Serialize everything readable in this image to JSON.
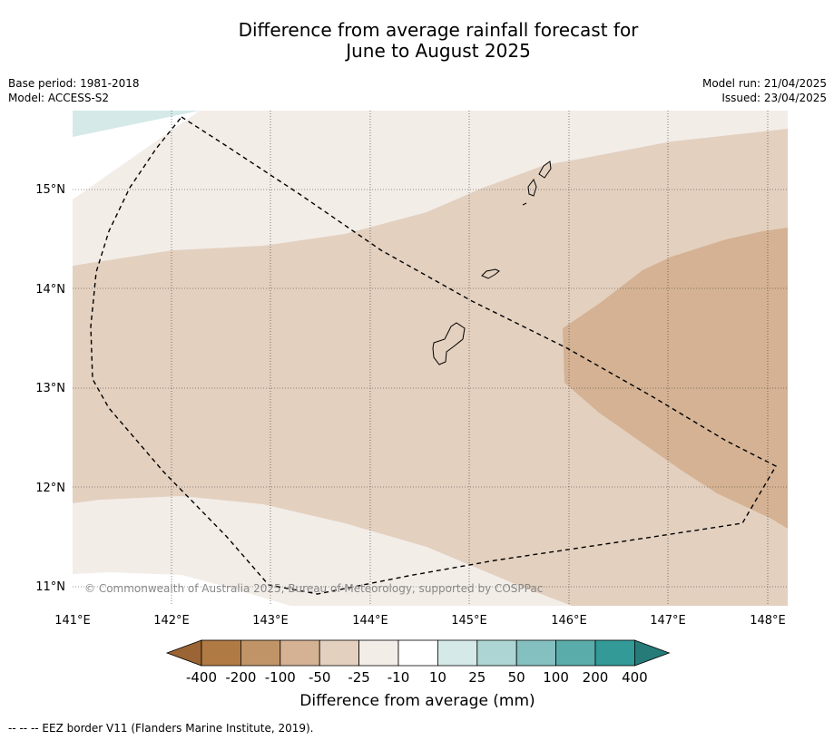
{
  "title_line1": "Difference from average rainfall forecast for",
  "title_line2": "June to August 2025",
  "info": {
    "base_period": "Base period: 1981-2018",
    "model": "Model: ACCESS-S2",
    "model_run": "Model run: 21/04/2025",
    "issued": "Issued: 23/04/2025"
  },
  "map": {
    "lon_ticks": [
      "141°E",
      "142°E",
      "143°E",
      "144°E",
      "145°E",
      "146°E",
      "147°E",
      "148°E"
    ],
    "lat_ticks": [
      "15°N",
      "14°N",
      "13°N",
      "12°N",
      "11°N"
    ],
    "copyright": "© Commonwealth of Australia 2025, Bureau of Meteorology, supported by COSPPac"
  },
  "legend": {
    "labels": [
      "-400",
      "-200",
      "-100",
      "-50",
      "-25",
      "-10",
      "10",
      "25",
      "50",
      "100",
      "200",
      "400"
    ],
    "colors": [
      "#9a6434",
      "#b07a44",
      "#c19468",
      "#d4b293",
      "#e3d0bf",
      "#f3ede8",
      "#ffffff",
      "#d4e9e8",
      "#acd5d3",
      "#85c0c0",
      "#5aacaa",
      "#339a97",
      "#267b78"
    ],
    "title": "Difference from average (mm)"
  },
  "footer": "--  --  -- EEZ border V11 (Flanders Marine Institute, 2019)."
}
